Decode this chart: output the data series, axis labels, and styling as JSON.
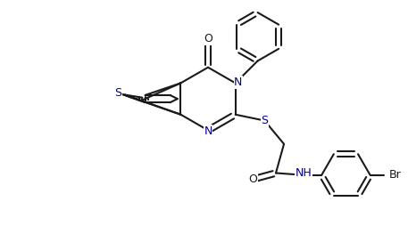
{
  "bg_color": "#ffffff",
  "line_color": "#1a1a1a",
  "heteroatom_color": "#00008b",
  "bond_lw": 1.5,
  "figsize": [
    4.57,
    2.72
  ],
  "dpi": 100,
  "xlim": [
    0,
    10
  ],
  "ylim": [
    0,
    6
  ]
}
